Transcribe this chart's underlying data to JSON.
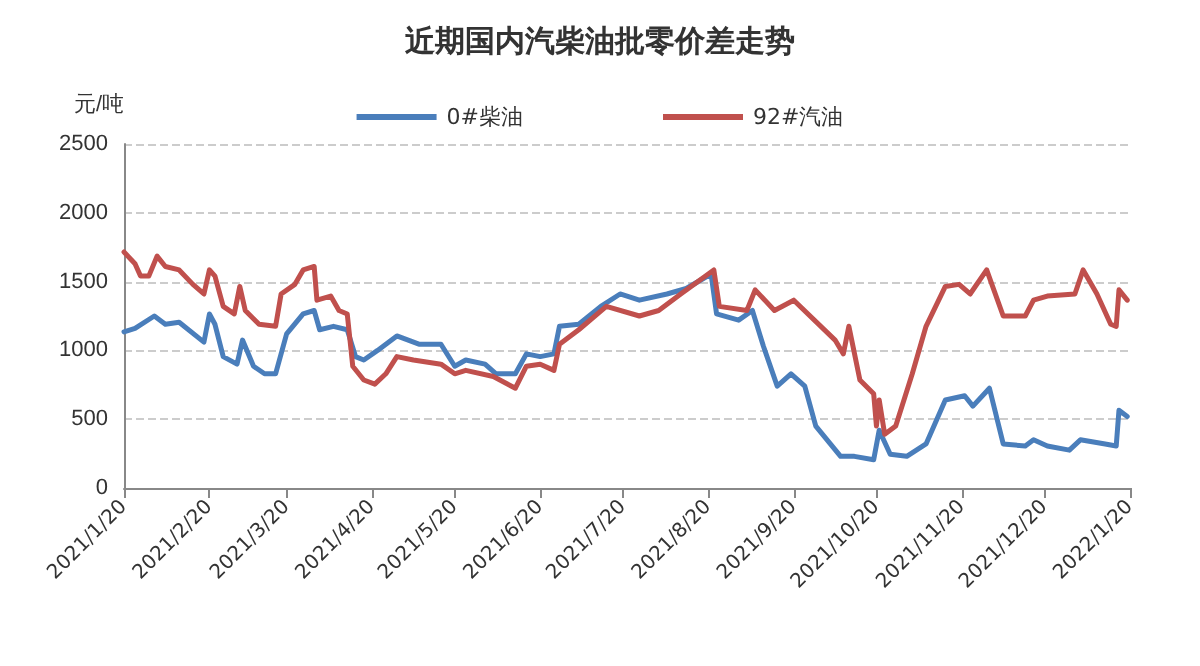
{
  "chart_data": {
    "type": "line",
    "title": "近期国内汽柴油批零价差走势",
    "ylabel": "元/吨",
    "xlim": [
      "2021-01-20",
      "2022-01-20"
    ],
    "xticks": [
      {
        "value": "2021-01-20",
        "label": "2021/1/20"
      },
      {
        "value": "2021-02-20",
        "label": "2021/2/20"
      },
      {
        "value": "2021-03-20",
        "label": "2021/3/20"
      },
      {
        "value": "2021-04-20",
        "label": "2021/4/20"
      },
      {
        "value": "2021-05-20",
        "label": "2021/5/20"
      },
      {
        "value": "2021-06-20",
        "label": "2021/6/20"
      },
      {
        "value": "2021-07-20",
        "label": "2021/7/20"
      },
      {
        "value": "2021-08-20",
        "label": "2021/8/20"
      },
      {
        "value": "2021-09-20",
        "label": "2021/9/20"
      },
      {
        "value": "2021-10-20",
        "label": "2021/10/20"
      },
      {
        "value": "2021-11-20",
        "label": "2021/11/20"
      },
      {
        "value": "2021-12-20",
        "label": "2021/12/20"
      },
      {
        "value": "2022-01-20",
        "label": "2022/1/20"
      }
    ],
    "ylim": [
      0,
      2500
    ],
    "yticks": [
      0,
      500,
      1000,
      1500,
      2000,
      2500
    ],
    "grid": "y",
    "legend": "top",
    "marker": "none",
    "line_style": "solid",
    "series": [
      {
        "name": "0#柴油",
        "color": "#4a7ebb",
        "x": [
          "2021-01-20",
          "2021-01-24",
          "2021-01-31",
          "2021-02-04",
          "2021-02-09",
          "2021-02-18",
          "2021-02-20",
          "2021-02-22",
          "2021-02-25",
          "2021-03-02",
          "2021-03-04",
          "2021-03-08",
          "2021-03-12",
          "2021-03-16",
          "2021-03-20",
          "2021-03-26",
          "2021-03-30",
          "2021-04-01",
          "2021-04-06",
          "2021-04-11",
          "2021-04-14",
          "2021-04-17",
          "2021-04-22",
          "2021-04-29",
          "2021-05-07",
          "2021-05-15",
          "2021-05-20",
          "2021-05-24",
          "2021-05-31",
          "2021-06-04",
          "2021-06-11",
          "2021-06-15",
          "2021-06-20",
          "2021-06-25",
          "2021-06-27",
          "2021-07-04",
          "2021-07-12",
          "2021-07-19",
          "2021-07-26",
          "2021-08-05",
          "2021-08-12",
          "2021-08-21",
          "2021-08-23",
          "2021-08-31",
          "2021-09-05",
          "2021-09-09",
          "2021-09-14",
          "2021-09-19",
          "2021-09-24",
          "2021-09-28",
          "2021-10-07",
          "2021-10-12",
          "2021-10-19",
          "2021-10-21",
          "2021-10-25",
          "2021-10-31",
          "2021-11-07",
          "2021-11-14",
          "2021-11-21",
          "2021-11-24",
          "2021-11-30",
          "2021-12-05",
          "2021-12-13",
          "2021-12-16",
          "2021-12-21",
          "2021-12-29",
          "2022-01-02",
          "2022-01-11",
          "2022-01-15",
          "2022-01-16",
          "2022-01-19"
        ],
        "values": [
          1135,
          1160,
          1250,
          1190,
          1205,
          1060,
          1265,
          1190,
          955,
          900,
          1075,
          885,
          830,
          830,
          1120,
          1265,
          1290,
          1150,
          1175,
          1150,
          955,
          930,
          1000,
          1105,
          1045,
          1045,
          885,
          930,
          900,
          830,
          830,
          975,
          955,
          975,
          1175,
          1190,
          1320,
          1410,
          1365,
          1410,
          1450,
          1555,
          1265,
          1220,
          1290,
          1030,
          740,
          830,
          740,
          450,
          230,
          230,
          205,
          420,
          245,
          230,
          320,
          640,
          670,
          595,
          725,
          320,
          305,
          350,
          305,
          275,
          350,
          320,
          305,
          565,
          520
        ]
      },
      {
        "name": "92#汽油",
        "color": "#c0504d",
        "x": [
          "2021-01-20",
          "2021-01-24",
          "2021-01-26",
          "2021-01-29",
          "2021-02-01",
          "2021-02-04",
          "2021-02-09",
          "2021-02-14",
          "2021-02-18",
          "2021-02-20",
          "2021-02-22",
          "2021-02-25",
          "2021-03-01",
          "2021-03-03",
          "2021-03-05",
          "2021-03-10",
          "2021-03-16",
          "2021-03-18",
          "2021-03-23",
          "2021-03-26",
          "2021-03-30",
          "2021-03-31",
          "2021-04-05",
          "2021-04-08",
          "2021-04-11",
          "2021-04-13",
          "2021-04-17",
          "2021-04-21",
          "2021-04-25",
          "2021-04-29",
          "2021-05-05",
          "2021-05-15",
          "2021-05-20",
          "2021-05-24",
          "2021-06-03",
          "2021-06-11",
          "2021-06-15",
          "2021-06-20",
          "2021-06-25",
          "2021-06-27",
          "2021-07-04",
          "2021-07-14",
          "2021-07-26",
          "2021-08-02",
          "2021-08-10",
          "2021-08-22",
          "2021-08-24",
          "2021-09-03",
          "2021-09-06",
          "2021-09-13",
          "2021-09-20",
          "2021-10-05",
          "2021-10-08",
          "2021-10-10",
          "2021-10-14",
          "2021-10-19",
          "2021-10-20",
          "2021-10-21",
          "2021-10-23",
          "2021-10-27",
          "2021-11-02",
          "2021-11-07",
          "2021-11-14",
          "2021-11-19",
          "2021-11-23",
          "2021-11-29",
          "2021-12-05",
          "2021-12-13",
          "2021-12-16",
          "2021-12-21",
          "2021-12-31",
          "2022-01-03",
          "2022-01-08",
          "2022-01-13",
          "2022-01-15",
          "2022-01-16",
          "2022-01-19"
        ],
        "values": [
          1715,
          1630,
          1540,
          1540,
          1685,
          1610,
          1585,
          1480,
          1410,
          1585,
          1540,
          1320,
          1265,
          1465,
          1290,
          1190,
          1175,
          1410,
          1480,
          1585,
          1610,
          1365,
          1395,
          1290,
          1265,
          885,
          785,
          755,
          830,
          955,
          930,
          900,
          830,
          855,
          810,
          725,
          885,
          900,
          855,
          1045,
          1150,
          1320,
          1250,
          1290,
          1410,
          1585,
          1320,
          1290,
          1440,
          1290,
          1365,
          1075,
          975,
          1175,
          785,
          685,
          450,
          640,
          390,
          450,
          830,
          1175,
          1465,
          1480,
          1410,
          1585,
          1250,
          1250,
          1365,
          1395,
          1410,
          1585,
          1410,
          1190,
          1175,
          1440,
          1365
        ]
      }
    ]
  }
}
